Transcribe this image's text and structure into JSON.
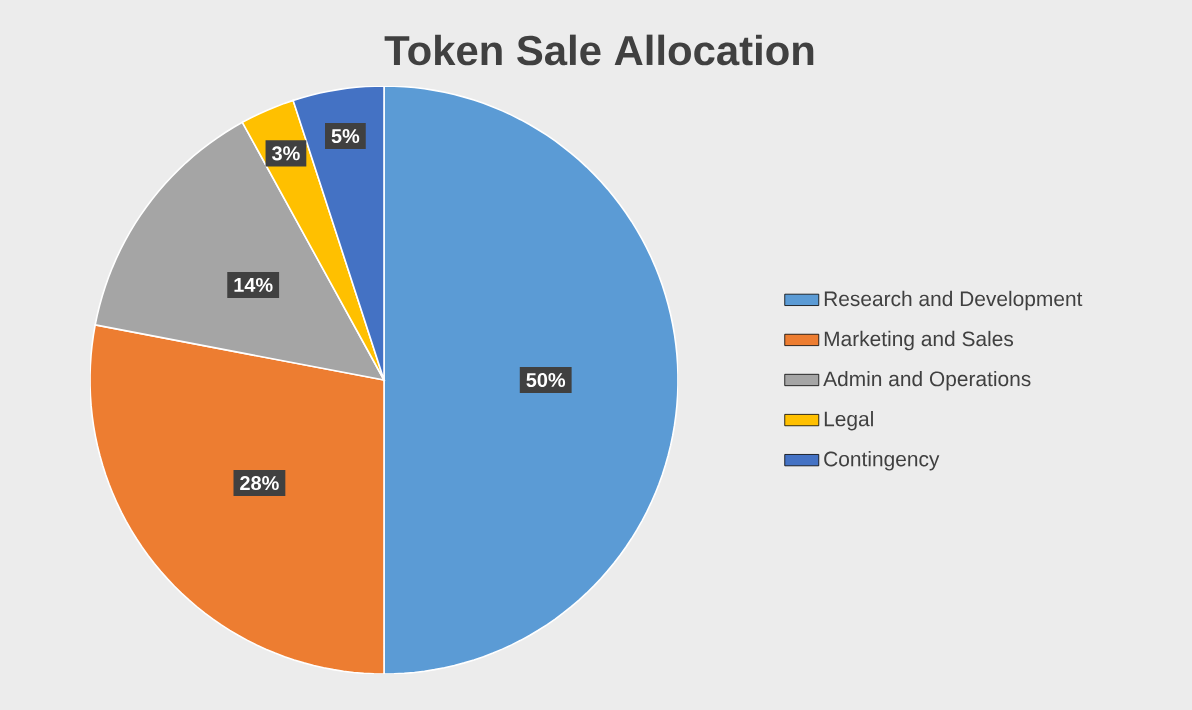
{
  "chart_data": {
    "type": "pie",
    "title": "Token Sale Allocation",
    "categories": [
      "Research and Development",
      "Marketing and Sales",
      "Admin and Operations",
      "Legal",
      "Contingency"
    ],
    "values": [
      50,
      28,
      14,
      3,
      5
    ],
    "colors": [
      "#5b9bd5",
      "#ed7d31",
      "#a5a5a5",
      "#ffc000",
      "#4472c4"
    ],
    "value_labels": [
      "50%",
      "28%",
      "14%",
      "3%",
      "5%"
    ],
    "legend": "right"
  }
}
